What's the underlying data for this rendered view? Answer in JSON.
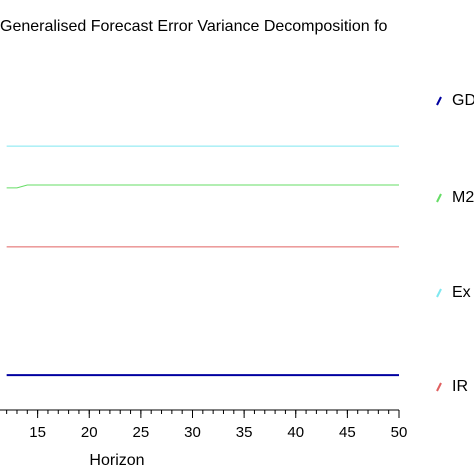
{
  "chart_data": {
    "type": "line",
    "title": "Generalised Forecast Error Variance Decomposition fo",
    "xlabel": "Horizon",
    "x": [
      12,
      13,
      14,
      15,
      16,
      17,
      18,
      19,
      20,
      21,
      22,
      23,
      24,
      25,
      26,
      27,
      28,
      29,
      30,
      31,
      32,
      33,
      34,
      35,
      36,
      37,
      38,
      39,
      40,
      41,
      42,
      43,
      44,
      45,
      46,
      47,
      48,
      49,
      50
    ],
    "xlim": [
      10,
      50
    ],
    "xticks": [
      15,
      20,
      25,
      30,
      35,
      40,
      45,
      50
    ],
    "ylim": [
      0,
      1
    ],
    "series": [
      {
        "name": "GD",
        "color": "#0000a0",
        "values": [
          0.097,
          0.097,
          0.097,
          0.097,
          0.097,
          0.097,
          0.097,
          0.097,
          0.097,
          0.097,
          0.097,
          0.097,
          0.097,
          0.097,
          0.097,
          0.097,
          0.097,
          0.097,
          0.097,
          0.097,
          0.097,
          0.097,
          0.097,
          0.097,
          0.097,
          0.097,
          0.097,
          0.097,
          0.097,
          0.097,
          0.097,
          0.097,
          0.097,
          0.097,
          0.097,
          0.097,
          0.097,
          0.097,
          0.097
        ]
      },
      {
        "name": "M2",
        "color": "#66dd66",
        "values": [
          0.617,
          0.617,
          0.625,
          0.625,
          0.625,
          0.625,
          0.625,
          0.625,
          0.625,
          0.625,
          0.625,
          0.625,
          0.625,
          0.625,
          0.625,
          0.625,
          0.625,
          0.625,
          0.625,
          0.625,
          0.625,
          0.625,
          0.625,
          0.625,
          0.625,
          0.625,
          0.625,
          0.625,
          0.625,
          0.625,
          0.625,
          0.625,
          0.625,
          0.625,
          0.625,
          0.625,
          0.625,
          0.625,
          0.625
        ]
      },
      {
        "name": "Ex",
        "color": "#7fe8f0",
        "values": [
          0.733,
          0.733,
          0.733,
          0.733,
          0.733,
          0.733,
          0.733,
          0.733,
          0.733,
          0.733,
          0.733,
          0.733,
          0.733,
          0.733,
          0.733,
          0.733,
          0.733,
          0.733,
          0.733,
          0.733,
          0.733,
          0.733,
          0.733,
          0.733,
          0.733,
          0.733,
          0.733,
          0.733,
          0.733,
          0.733,
          0.733,
          0.733,
          0.733,
          0.733,
          0.733,
          0.733,
          0.733,
          0.733,
          0.733
        ]
      },
      {
        "name": "IR",
        "color": "#e06060",
        "values": [
          0.453,
          0.453,
          0.453,
          0.453,
          0.453,
          0.453,
          0.453,
          0.453,
          0.453,
          0.453,
          0.453,
          0.453,
          0.453,
          0.453,
          0.453,
          0.453,
          0.453,
          0.453,
          0.453,
          0.453,
          0.453,
          0.453,
          0.453,
          0.453,
          0.453,
          0.453,
          0.453,
          0.453,
          0.453,
          0.453,
          0.453,
          0.453,
          0.453,
          0.453,
          0.453,
          0.453,
          0.453,
          0.453,
          0.453
        ]
      }
    ]
  }
}
